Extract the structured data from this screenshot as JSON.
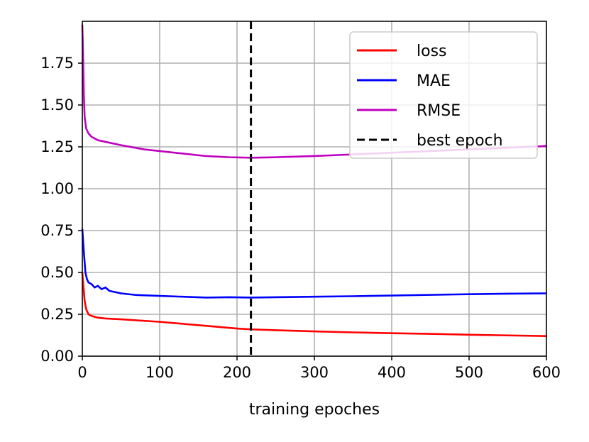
{
  "chart_data": {
    "type": "line",
    "title": "",
    "xlabel": "training epoches",
    "ylabel": "",
    "xlim": [
      0,
      600
    ],
    "ylim": [
      0,
      2.0
    ],
    "xticks": [
      0,
      100,
      200,
      300,
      400,
      500,
      600
    ],
    "yticks": [
      0.0,
      0.25,
      0.5,
      0.75,
      1.0,
      1.25,
      1.5,
      1.75
    ],
    "xtick_labels": [
      "0",
      "100",
      "200",
      "300",
      "400",
      "500",
      "600"
    ],
    "ytick_labels": [
      "0.00",
      "0.25",
      "0.50",
      "0.75",
      "1.00",
      "1.25",
      "1.50",
      "1.75"
    ],
    "grid": true,
    "legend_position": "top-right",
    "best_epoch": 218,
    "legend": [
      {
        "label": "loss",
        "color": "#ff0000",
        "style": "solid"
      },
      {
        "label": "MAE",
        "color": "#0000ff",
        "style": "solid"
      },
      {
        "label": "RMSE",
        "color": "#bf00bf",
        "style": "solid"
      },
      {
        "label": "best epoch",
        "color": "#000000",
        "style": "dashed"
      }
    ],
    "series": [
      {
        "name": "loss",
        "color": "#ff0000",
        "x": [
          0,
          3,
          5,
          8,
          12,
          20,
          30,
          50,
          100,
          150,
          200,
          218,
          250,
          300,
          350,
          400,
          450,
          500,
          550,
          600
        ],
        "y": [
          0.5,
          0.33,
          0.28,
          0.25,
          0.24,
          0.23,
          0.225,
          0.22,
          0.205,
          0.185,
          0.165,
          0.16,
          0.155,
          0.148,
          0.142,
          0.137,
          0.133,
          0.128,
          0.124,
          0.12
        ]
      },
      {
        "name": "MAE",
        "color": "#0000ff",
        "x": [
          0,
          2,
          4,
          6,
          8,
          12,
          16,
          20,
          25,
          30,
          35,
          40,
          50,
          70,
          100,
          130,
          160,
          190,
          218,
          250,
          300,
          350,
          400,
          450,
          500,
          550,
          600
        ],
        "y": [
          0.76,
          0.62,
          0.5,
          0.46,
          0.44,
          0.43,
          0.41,
          0.42,
          0.4,
          0.41,
          0.39,
          0.385,
          0.375,
          0.365,
          0.36,
          0.355,
          0.35,
          0.352,
          0.35,
          0.352,
          0.355,
          0.358,
          0.362,
          0.366,
          0.37,
          0.373,
          0.375
        ]
      },
      {
        "name": "RMSE",
        "color": "#bf00bf",
        "x": [
          0,
          1,
          2,
          3,
          5,
          8,
          12,
          20,
          30,
          50,
          80,
          100,
          130,
          160,
          190,
          218,
          250,
          300,
          350,
          400,
          450,
          500,
          550,
          600
        ],
        "y": [
          1.98,
          1.8,
          1.55,
          1.43,
          1.36,
          1.33,
          1.31,
          1.29,
          1.28,
          1.26,
          1.235,
          1.225,
          1.21,
          1.195,
          1.188,
          1.185,
          1.188,
          1.195,
          1.205,
          1.215,
          1.225,
          1.235,
          1.245,
          1.255
        ]
      }
    ]
  }
}
